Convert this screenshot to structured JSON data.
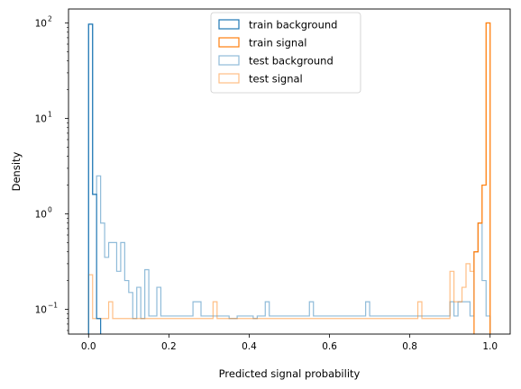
{
  "chart_data": {
    "type": "histogram-step",
    "xlabel": "Predicted signal probability",
    "ylabel": "Density",
    "xlim": [
      -0.05,
      1.05
    ],
    "ylim": [
      0.055,
      140
    ],
    "yscale": "log",
    "xticks": [
      0.0,
      0.2,
      0.4,
      0.6,
      0.8,
      1.0
    ],
    "xtick_labels": [
      "0.0",
      "0.2",
      "0.4",
      "0.6",
      "0.8",
      "1.0"
    ],
    "yticks": [
      0.1,
      1,
      10,
      100
    ],
    "ytick_base": "10",
    "ytick_exponents": [
      "−1",
      "0",
      "1",
      "2"
    ],
    "bin_width": 0.01,
    "legend_position": "upper-center",
    "series": [
      {
        "name": "train background",
        "color": "#1f77b4",
        "alpha": 1.0,
        "bins": [
          [
            0.0,
            97
          ],
          [
            0.01,
            1.6
          ],
          [
            0.02,
            0.08
          ]
        ]
      },
      {
        "name": "train signal",
        "color": "#ff7f0e",
        "alpha": 1.0,
        "bins": [
          [
            0.96,
            0.4
          ],
          [
            0.97,
            0.8
          ],
          [
            0.98,
            2.0
          ],
          [
            0.99,
            100
          ]
        ]
      },
      {
        "name": "test background",
        "color": "#1f77b4",
        "alpha": 0.5,
        "bins": [
          [
            0.0,
            97
          ],
          [
            0.01,
            1.6
          ],
          [
            0.02,
            2.5
          ],
          [
            0.03,
            0.8
          ],
          [
            0.04,
            0.35
          ],
          [
            0.05,
            0.5
          ],
          [
            0.06,
            0.5
          ],
          [
            0.07,
            0.25
          ],
          [
            0.08,
            0.5
          ],
          [
            0.09,
            0.2
          ],
          [
            0.1,
            0.15
          ],
          [
            0.11,
            0.08
          ],
          [
            0.12,
            0.17
          ],
          [
            0.13,
            0.08
          ],
          [
            0.14,
            0.26
          ],
          [
            0.15,
            0.085
          ],
          [
            0.16,
            0.085
          ],
          [
            0.17,
            0.17
          ],
          [
            0.18,
            0.085
          ],
          [
            0.19,
            0.085
          ],
          [
            0.2,
            0.085
          ],
          [
            0.21,
            0.085
          ],
          [
            0.22,
            0.085
          ],
          [
            0.23,
            0.085
          ],
          [
            0.24,
            0.085
          ],
          [
            0.25,
            0.085
          ],
          [
            0.26,
            0.12
          ],
          [
            0.27,
            0.12
          ],
          [
            0.28,
            0.085
          ],
          [
            0.29,
            0.085
          ],
          [
            0.3,
            0.085
          ],
          [
            0.31,
            0.085
          ],
          [
            0.32,
            0.085
          ],
          [
            0.33,
            0.085
          ],
          [
            0.34,
            0.085
          ],
          [
            0.35,
            0.08
          ],
          [
            0.36,
            0.08
          ],
          [
            0.37,
            0.085
          ],
          [
            0.38,
            0.085
          ],
          [
            0.39,
            0.085
          ],
          [
            0.4,
            0.085
          ],
          [
            0.41,
            0.08
          ],
          [
            0.42,
            0.085
          ],
          [
            0.43,
            0.085
          ],
          [
            0.44,
            0.12
          ],
          [
            0.45,
            0.085
          ],
          [
            0.46,
            0.085
          ],
          [
            0.47,
            0.085
          ],
          [
            0.48,
            0.085
          ],
          [
            0.49,
            0.085
          ],
          [
            0.5,
            0.085
          ],
          [
            0.51,
            0.085
          ],
          [
            0.52,
            0.085
          ],
          [
            0.53,
            0.085
          ],
          [
            0.54,
            0.085
          ],
          [
            0.55,
            0.12
          ],
          [
            0.56,
            0.085
          ],
          [
            0.57,
            0.085
          ],
          [
            0.58,
            0.085
          ],
          [
            0.59,
            0.085
          ],
          [
            0.6,
            0.085
          ],
          [
            0.61,
            0.085
          ],
          [
            0.62,
            0.085
          ],
          [
            0.63,
            0.085
          ],
          [
            0.64,
            0.085
          ],
          [
            0.65,
            0.085
          ],
          [
            0.66,
            0.085
          ],
          [
            0.67,
            0.085
          ],
          [
            0.68,
            0.085
          ],
          [
            0.69,
            0.12
          ],
          [
            0.7,
            0.085
          ],
          [
            0.71,
            0.085
          ],
          [
            0.72,
            0.085
          ],
          [
            0.73,
            0.085
          ],
          [
            0.74,
            0.085
          ],
          [
            0.75,
            0.085
          ],
          [
            0.76,
            0.085
          ],
          [
            0.77,
            0.085
          ],
          [
            0.78,
            0.085
          ],
          [
            0.79,
            0.085
          ],
          [
            0.8,
            0.085
          ],
          [
            0.81,
            0.085
          ],
          [
            0.82,
            0.085
          ],
          [
            0.83,
            0.085
          ],
          [
            0.84,
            0.085
          ],
          [
            0.85,
            0.085
          ],
          [
            0.86,
            0.085
          ],
          [
            0.87,
            0.085
          ],
          [
            0.88,
            0.085
          ],
          [
            0.89,
            0.085
          ],
          [
            0.9,
            0.12
          ],
          [
            0.91,
            0.085
          ],
          [
            0.92,
            0.12
          ],
          [
            0.93,
            0.12
          ],
          [
            0.94,
            0.12
          ],
          [
            0.95,
            0.085
          ],
          [
            0.96,
            0.4
          ],
          [
            0.97,
            0.8
          ],
          [
            0.98,
            0.2
          ],
          [
            0.99,
            0.085
          ]
        ]
      },
      {
        "name": "test signal",
        "color": "#ff7f0e",
        "alpha": 0.5,
        "bins": [
          [
            0.0,
            0.23
          ],
          [
            0.01,
            0.08
          ],
          [
            0.02,
            0.08
          ],
          [
            0.03,
            0.08
          ],
          [
            0.04,
            0.08
          ],
          [
            0.05,
            0.12
          ],
          [
            0.06,
            0.08
          ],
          [
            0.07,
            0.08
          ],
          [
            0.08,
            0.08
          ],
          [
            0.09,
            0.08
          ],
          [
            0.1,
            0.08
          ],
          [
            0.11,
            0.08
          ],
          [
            0.12,
            0.08
          ],
          [
            0.13,
            0.08
          ],
          [
            0.14,
            0.08
          ],
          [
            0.15,
            0.08
          ],
          [
            0.16,
            0.08
          ],
          [
            0.17,
            0.08
          ],
          [
            0.18,
            0.08
          ],
          [
            0.19,
            0.08
          ],
          [
            0.2,
            0.08
          ],
          [
            0.21,
            0.08
          ],
          [
            0.22,
            0.08
          ],
          [
            0.23,
            0.08
          ],
          [
            0.24,
            0.08
          ],
          [
            0.25,
            0.08
          ],
          [
            0.26,
            0.08
          ],
          [
            0.27,
            0.08
          ],
          [
            0.28,
            0.08
          ],
          [
            0.29,
            0.08
          ],
          [
            0.3,
            0.08
          ],
          [
            0.31,
            0.12
          ],
          [
            0.32,
            0.08
          ],
          [
            0.33,
            0.08
          ],
          [
            0.34,
            0.08
          ],
          [
            0.35,
            0.08
          ],
          [
            0.36,
            0.08
          ],
          [
            0.37,
            0.08
          ],
          [
            0.38,
            0.08
          ],
          [
            0.39,
            0.08
          ],
          [
            0.4,
            0.08
          ],
          [
            0.41,
            0.08
          ],
          [
            0.42,
            0.08
          ],
          [
            0.43,
            0.08
          ],
          [
            0.44,
            0.08
          ],
          [
            0.45,
            0.08
          ],
          [
            0.46,
            0.08
          ],
          [
            0.47,
            0.08
          ],
          [
            0.48,
            0.08
          ],
          [
            0.49,
            0.08
          ],
          [
            0.5,
            0.08
          ],
          [
            0.51,
            0.08
          ],
          [
            0.52,
            0.08
          ],
          [
            0.53,
            0.08
          ],
          [
            0.54,
            0.08
          ],
          [
            0.55,
            0.08
          ],
          [
            0.56,
            0.08
          ],
          [
            0.57,
            0.08
          ],
          [
            0.58,
            0.08
          ],
          [
            0.59,
            0.08
          ],
          [
            0.6,
            0.08
          ],
          [
            0.61,
            0.08
          ],
          [
            0.62,
            0.08
          ],
          [
            0.63,
            0.08
          ],
          [
            0.64,
            0.08
          ],
          [
            0.65,
            0.08
          ],
          [
            0.66,
            0.08
          ],
          [
            0.67,
            0.08
          ],
          [
            0.68,
            0.08
          ],
          [
            0.69,
            0.08
          ],
          [
            0.7,
            0.08
          ],
          [
            0.71,
            0.08
          ],
          [
            0.72,
            0.08
          ],
          [
            0.73,
            0.08
          ],
          [
            0.74,
            0.08
          ],
          [
            0.75,
            0.08
          ],
          [
            0.76,
            0.08
          ],
          [
            0.77,
            0.08
          ],
          [
            0.78,
            0.08
          ],
          [
            0.79,
            0.08
          ],
          [
            0.8,
            0.08
          ],
          [
            0.81,
            0.08
          ],
          [
            0.82,
            0.12
          ],
          [
            0.83,
            0.08
          ],
          [
            0.84,
            0.08
          ],
          [
            0.85,
            0.08
          ],
          [
            0.86,
            0.08
          ],
          [
            0.87,
            0.08
          ],
          [
            0.88,
            0.08
          ],
          [
            0.89,
            0.08
          ],
          [
            0.9,
            0.25
          ],
          [
            0.91,
            0.12
          ],
          [
            0.92,
            0.12
          ],
          [
            0.93,
            0.17
          ],
          [
            0.94,
            0.3
          ],
          [
            0.95,
            0.25
          ],
          [
            0.96,
            0.4
          ],
          [
            0.97,
            0.8
          ],
          [
            0.98,
            2.0
          ],
          [
            0.99,
            100
          ]
        ]
      }
    ]
  }
}
